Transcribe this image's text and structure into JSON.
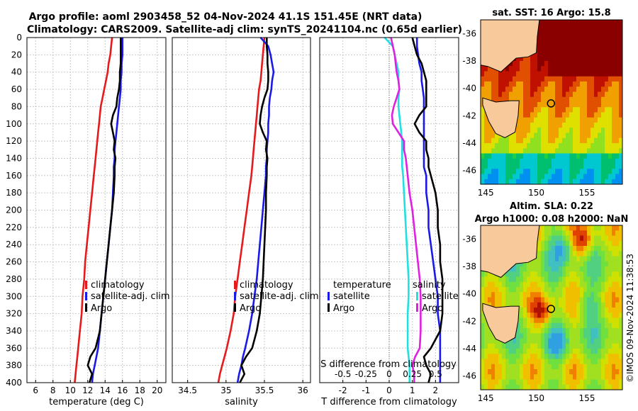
{
  "title": {
    "line1": "Argo profile: aoml 2903458_52 04-Nov-2024 41.1S 151.45E (NRT data)",
    "line2": "Climatology: CARS2009. Satellite-adj clim: synTS_20241104.nc (0.65d earlier)"
  },
  "side_text": "©IMOS 09-Nov-2024 11:38:53",
  "colors": {
    "climatology": "#e41a1c",
    "satellite": "#1a1ae6",
    "argo": "#000000",
    "s_diff_cyan": "#22e0e0",
    "s_diff_magenta": "#e020e0",
    "land": "#f7c99b"
  },
  "depth_axis": {
    "ylim": [
      0,
      400
    ],
    "ticks": [
      "0",
      "20",
      "40",
      "60",
      "80",
      "100",
      "120",
      "140",
      "160",
      "180",
      "200",
      "220",
      "240",
      "260",
      "280",
      "300",
      "320",
      "340",
      "360",
      "380",
      "400"
    ]
  },
  "chart_data": [
    {
      "id": "temperature",
      "type": "line",
      "xlabel": "temperature (deg C)",
      "xlim": [
        5,
        21
      ],
      "xticks": [
        6,
        8,
        10,
        12,
        14,
        16,
        18,
        20
      ],
      "xtick_labels": [
        "6",
        "8",
        "10",
        "12",
        "14",
        "16",
        "18",
        "20"
      ],
      "depth": [
        0,
        10,
        20,
        30,
        40,
        50,
        60,
        70,
        80,
        90,
        100,
        110,
        120,
        130,
        140,
        150,
        160,
        180,
        200,
        220,
        240,
        260,
        280,
        300,
        320,
        340,
        360,
        370,
        380,
        390,
        400
      ],
      "series": [
        {
          "name": "climatology",
          "color_key": "climatology",
          "values": [
            14.8,
            14.7,
            14.6,
            14.4,
            14.3,
            14.1,
            13.9,
            13.7,
            13.5,
            13.4,
            13.3,
            13.2,
            13.1,
            13.0,
            12.9,
            12.8,
            12.7,
            12.5,
            12.3,
            12.1,
            11.9,
            11.7,
            11.6,
            11.4,
            11.3,
            11.1,
            10.9,
            10.8,
            10.7,
            10.6,
            10.5
          ]
        },
        {
          "name": "satellite-adj. clim",
          "color_key": "satellite",
          "values": [
            16.0,
            16.0,
            16.0,
            15.9,
            15.9,
            15.8,
            15.8,
            15.7,
            15.6,
            15.5,
            15.4,
            15.3,
            15.2,
            15.1,
            15.1,
            15.0,
            15.0,
            14.9,
            14.8,
            14.6,
            14.4,
            14.2,
            14.0,
            13.8,
            13.6,
            13.4,
            13.2,
            13.0,
            12.8,
            12.6,
            12.5
          ]
        },
        {
          "name": "Argo",
          "color_key": "argo",
          "values": [
            15.8,
            15.8,
            15.8,
            15.8,
            15.7,
            15.7,
            15.6,
            15.4,
            15.3,
            14.9,
            14.7,
            14.9,
            15.1,
            15.0,
            15.2,
            15.1,
            15.1,
            15.0,
            14.8,
            14.6,
            14.4,
            14.2,
            14.0,
            13.8,
            13.6,
            13.4,
            12.9,
            12.3,
            12.0,
            12.5,
            12.2
          ]
        }
      ]
    },
    {
      "id": "salinity",
      "type": "line",
      "xlabel": "salinity",
      "xlim": [
        34.3,
        36.1
      ],
      "xticks": [
        34.5,
        35,
        35.5,
        36
      ],
      "xtick_labels": [
        "34.5",
        "35",
        "35.5",
        "36"
      ],
      "depth": [
        0,
        10,
        20,
        30,
        40,
        50,
        60,
        70,
        80,
        90,
        100,
        110,
        120,
        130,
        140,
        150,
        160,
        180,
        200,
        220,
        240,
        260,
        280,
        300,
        320,
        340,
        360,
        370,
        380,
        390,
        400
      ],
      "series": [
        {
          "name": "climatology",
          "color_key": "climatology",
          "values": [
            35.5,
            35.49,
            35.48,
            35.47,
            35.46,
            35.45,
            35.43,
            35.42,
            35.41,
            35.4,
            35.39,
            35.38,
            35.37,
            35.36,
            35.35,
            35.34,
            35.33,
            35.3,
            35.27,
            35.24,
            35.21,
            35.18,
            35.15,
            35.12,
            35.1,
            35.06,
            35.01,
            34.98,
            34.95,
            34.92,
            34.9
          ]
        },
        {
          "name": "satellite-adj. clim",
          "color_key": "satellite",
          "values": [
            35.45,
            35.55,
            35.58,
            35.6,
            35.62,
            35.6,
            35.59,
            35.57,
            35.56,
            35.56,
            35.55,
            35.55,
            35.54,
            35.53,
            35.53,
            35.52,
            35.52,
            35.5,
            35.48,
            35.46,
            35.44,
            35.42,
            35.4,
            35.37,
            35.34,
            35.3,
            35.25,
            35.22,
            35.2,
            35.17,
            35.15
          ]
        },
        {
          "name": "Argo",
          "color_key": "argo",
          "values": [
            35.53,
            35.53,
            35.54,
            35.54,
            35.55,
            35.55,
            35.54,
            35.5,
            35.47,
            35.45,
            35.44,
            35.48,
            35.53,
            35.52,
            35.54,
            35.53,
            35.53,
            35.52,
            35.52,
            35.51,
            35.5,
            35.49,
            35.48,
            35.46,
            35.44,
            35.4,
            35.34,
            35.26,
            35.2,
            35.24,
            35.18
          ]
        }
      ]
    },
    {
      "id": "difference",
      "type": "line",
      "xlabel": "T difference from climatology",
      "xlim": [
        -3,
        3
      ],
      "xticks": [
        -2,
        -1,
        0,
        1,
        2
      ],
      "xtick_labels": [
        "-2",
        "-1",
        "0",
        "1",
        "2"
      ],
      "top_label": "S difference from climatology",
      "s_ticks": [
        -0.5,
        -0.25,
        0,
        0.25,
        0.5
      ],
      "s_tick_labels": [
        "-0.5",
        "-0.25",
        "0",
        "0.25",
        "0.5"
      ],
      "legend_left": {
        "title": "temperature",
        "items": [
          "satellite",
          "Argo"
        ]
      },
      "legend_right": {
        "title": "salinity",
        "items": [
          "satellite",
          "Argo"
        ]
      },
      "depth": [
        0,
        10,
        20,
        30,
        40,
        50,
        60,
        70,
        80,
        90,
        100,
        110,
        120,
        130,
        140,
        150,
        160,
        180,
        200,
        220,
        240,
        260,
        280,
        300,
        320,
        340,
        360,
        370,
        380,
        390,
        400
      ],
      "series": [
        {
          "name": "T satellite",
          "color_key": "satellite",
          "values": [
            1.2,
            1.2,
            1.25,
            1.3,
            1.4,
            1.4,
            1.45,
            1.5,
            1.5,
            1.5,
            1.5,
            1.5,
            1.5,
            1.5,
            1.5,
            1.5,
            1.6,
            1.6,
            1.7,
            1.7,
            1.8,
            1.9,
            2.0,
            2.1,
            2.1,
            2.2,
            2.2,
            2.2,
            2.2,
            2.2,
            2.2
          ]
        },
        {
          "name": "T Argo",
          "color_key": "argo",
          "values": [
            1.0,
            1.1,
            1.2,
            1.4,
            1.5,
            1.6,
            1.6,
            1.6,
            1.6,
            1.3,
            1.1,
            1.3,
            1.6,
            1.6,
            1.7,
            1.7,
            1.8,
            2.0,
            2.1,
            2.1,
            2.2,
            2.2,
            2.3,
            2.3,
            2.3,
            2.2,
            1.8,
            1.5,
            1.6,
            1.8,
            1.7
          ]
        },
        {
          "name": "S satellite",
          "color_key": "s_diff_cyan",
          "values": [
            -0.05,
            0.04,
            0.06,
            0.08,
            0.1,
            0.1,
            0.11,
            0.1,
            0.1,
            0.11,
            0.12,
            0.13,
            0.14,
            0.14,
            0.14,
            0.14,
            0.15,
            0.16,
            0.17,
            0.18,
            0.19,
            0.2,
            0.21,
            0.21,
            0.2,
            0.2,
            0.2,
            0.21,
            0.22,
            0.22,
            0.22
          ]
        },
        {
          "name": "S Argo",
          "color_key": "s_diff_magenta",
          "values": [
            0.02,
            0.04,
            0.06,
            0.07,
            0.08,
            0.1,
            0.11,
            0.08,
            0.05,
            0.03,
            0.04,
            0.1,
            0.16,
            0.16,
            0.18,
            0.19,
            0.2,
            0.22,
            0.25,
            0.27,
            0.29,
            0.31,
            0.33,
            0.34,
            0.34,
            0.34,
            0.33,
            0.28,
            0.25,
            0.27,
            0.27
          ]
        }
      ]
    }
  ],
  "maps": [
    {
      "id": "sst",
      "title": "sat. SST: 16 Argo: 15.8",
      "xticks": [
        "145",
        "150",
        "155"
      ],
      "yticks": [
        "-36",
        "-38",
        "-40",
        "-42",
        "-44",
        "-46"
      ]
    },
    {
      "id": "sla",
      "title1": "Altim. SLA: 0.22",
      "title2": "Argo h1000: 0.08 h2000: NaN",
      "xticks": [
        "145",
        "150",
        "155"
      ],
      "yticks": [
        "-36",
        "-38",
        "-40",
        "-42",
        "-44",
        "-46"
      ]
    }
  ],
  "legend_labels": [
    "climatology",
    "satellite-adj. clim",
    "Argo"
  ]
}
